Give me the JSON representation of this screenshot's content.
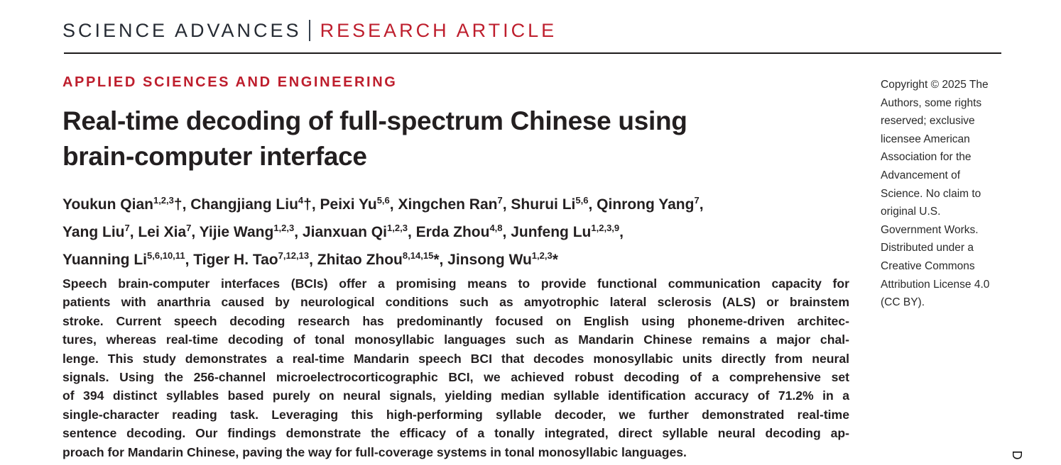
{
  "colors": {
    "accent_red": "#be1e2d",
    "text_dark": "#231f20"
  },
  "masthead": {
    "journal_name": "SCIENCE ADVANCES",
    "article_type": "RESEARCH ARTICLE"
  },
  "section_label": "APPLIED SCIENCES AND ENGINEERING",
  "title": {
    "full": "Real-time decoding of full-spectrum Chinese using brain-computer interface",
    "lines": [
      "Real-time decoding of full-spectrum Chinese using",
      "brain-computer interface"
    ]
  },
  "authors": {
    "lines": [
      [
        {
          "t": "Youkun Qian"
        },
        {
          "s": "1,2,3"
        },
        {
          "t": "†, Changjiang Liu"
        },
        {
          "s": "4"
        },
        {
          "t": "†, Peixi Yu"
        },
        {
          "s": "5,6"
        },
        {
          "t": ", Xingchen Ran"
        },
        {
          "s": "7"
        },
        {
          "t": ", Shurui Li"
        },
        {
          "s": "5,6"
        },
        {
          "t": ", Qinrong Yang"
        },
        {
          "s": "7"
        },
        {
          "t": ","
        }
      ],
      [
        {
          "t": "Yang Liu"
        },
        {
          "s": "7"
        },
        {
          "t": ", Lei Xia"
        },
        {
          "s": "7"
        },
        {
          "t": ", Yijie Wang"
        },
        {
          "s": "1,2,3"
        },
        {
          "t": ", Jianxuan Qi"
        },
        {
          "s": "1,2,3"
        },
        {
          "t": ", Erda Zhou"
        },
        {
          "s": "4,8"
        },
        {
          "t": ", Junfeng Lu"
        },
        {
          "s": "1,2,3,9"
        },
        {
          "t": ","
        }
      ],
      [
        {
          "t": "Yuanning Li"
        },
        {
          "s": "5,6,10,11"
        },
        {
          "t": ", Tiger H. Tao"
        },
        {
          "s": "7,12,13"
        },
        {
          "t": ", Zhitao Zhou"
        },
        {
          "s": "8,14,15"
        },
        {
          "t": "*, Jinsong Wu"
        },
        {
          "s": "1,2,3"
        },
        {
          "t": "*"
        }
      ]
    ]
  },
  "abstract": {
    "lines": [
      "Speech brain-computer interfaces (BCIs) offer a promising means to provide functional communication capacity for",
      "patients with anarthria caused by neurological conditions such as amyotrophic lateral sclerosis (ALS) or brainstem",
      "stroke. Current speech decoding research has predominantly focused on English using phoneme-driven architec-",
      "tures, whereas real-time decoding of tonal monosyllabic languages such as Mandarin Chinese remains a major chal-",
      "lenge. This study demonstrates a real-time Mandarin speech BCI that decodes monosyllabic units directly from neural",
      "signals. Using the 256-channel microelectrocorticographic BCI, we achieved robust decoding of a comprehensive set",
      "of 394 distinct syllables based purely on neural signals, yielding median syllable identification accuracy of 71.2% in a",
      "single-character reading task. Leveraging this high-performing syllable decoder, we further demonstrated real-time",
      "sentence decoding. Our findings demonstrate the efficacy of a tonally integrated, direct syllable neural decoding ap-",
      "proach for Mandarin Chinese, paving the way for full-coverage systems in tonal monosyllabic languages."
    ]
  },
  "copyright": {
    "lines": [
      "Copyright © 2025 The",
      "Authors, some rights",
      "reserved; exclusive",
      "licensee American",
      "Association for the",
      "Advancement of",
      "Science. No claim to",
      "original U.S.",
      "Government Works.",
      "Distributed under a",
      "Creative Commons",
      "Attribution License 4.0",
      "(CC BY)."
    ]
  },
  "watermark_letter": "D"
}
